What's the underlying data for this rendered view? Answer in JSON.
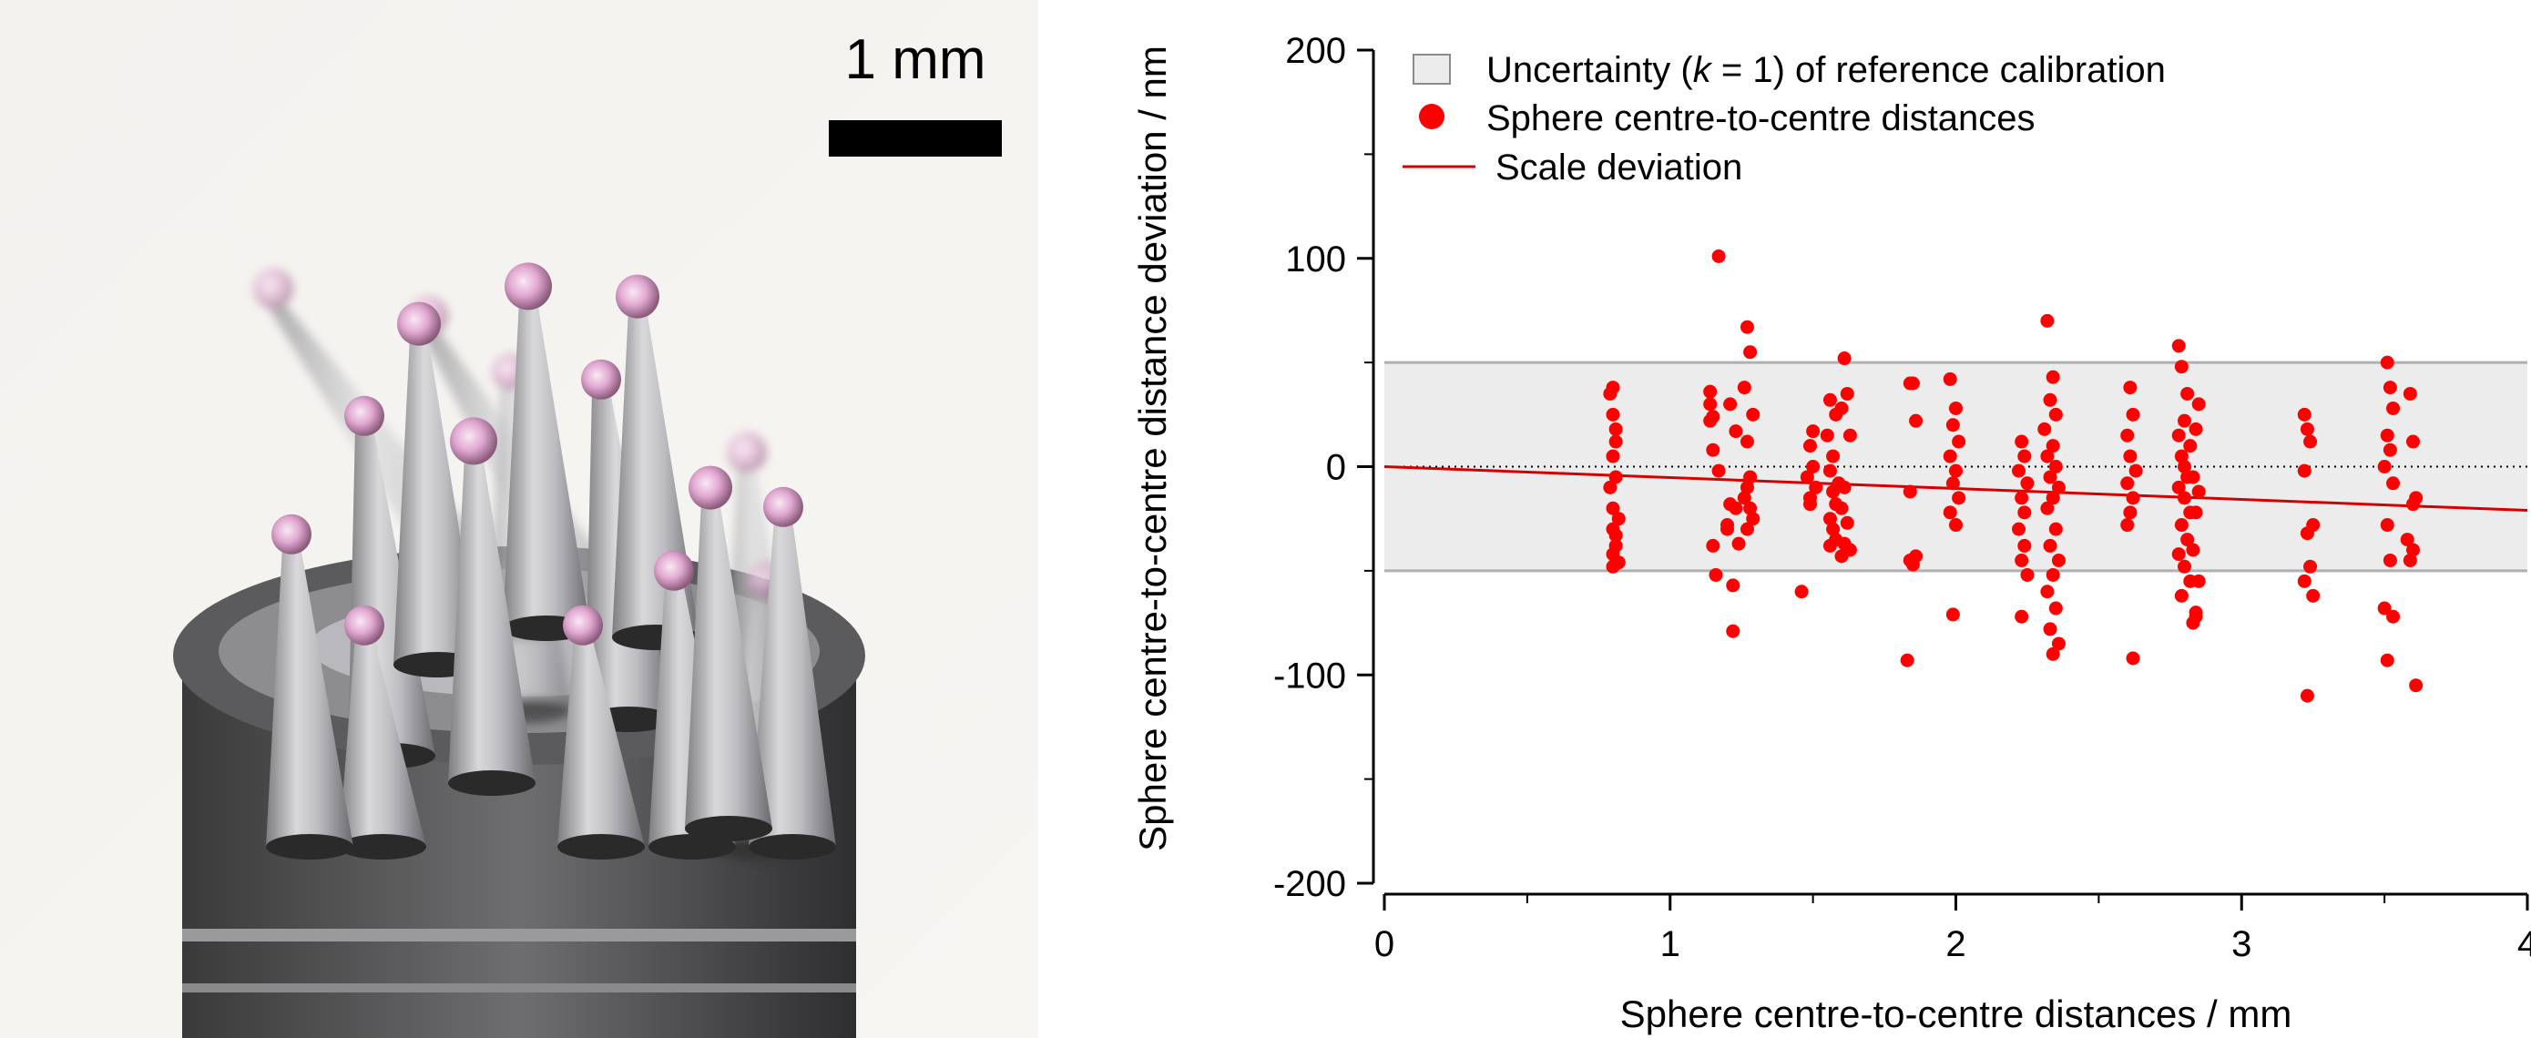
{
  "photo": {
    "scale_bar_label": "1 mm"
  },
  "chart_data": {
    "type": "scatter",
    "title": "",
    "xlabel": "Sphere centre-to-centre distances / mm",
    "ylabel": "Sphere centre-to-centre distance deviation / nm",
    "xlim": [
      0,
      4
    ],
    "ylim": [
      -200,
      200
    ],
    "x_ticks": [
      "0",
      "1",
      "2",
      "3",
      "4"
    ],
    "y_ticks": [
      "-200",
      "-100",
      "0",
      "100",
      "200"
    ],
    "grid": false,
    "legend_position": "top-left",
    "uncertainty_band": {
      "name": "Uncertainty (k = 1) of reference calibration",
      "lower": -50,
      "upper": 50,
      "color": "#ececec"
    },
    "scale_deviation": {
      "name": "Scale deviation",
      "x": [
        0,
        4
      ],
      "y": [
        0,
        -21
      ],
      "color": "#d40000"
    },
    "points": {
      "name": "Sphere centre-to-centre distances",
      "color": "#ff0000",
      "x": [
        0.79,
        0.8,
        0.8,
        0.81,
        0.81,
        0.8,
        0.81,
        0.79,
        0.8,
        0.82,
        0.8,
        0.81,
        0.81,
        0.8,
        0.82,
        0.8,
        1.14,
        1.14,
        1.17,
        1.15,
        1.16,
        1.17,
        1.14,
        1.15,
        1.15,
        1.21,
        1.23,
        1.2,
        1.24,
        1.22,
        1.22,
        1.21,
        1.23,
        1.2,
        1.27,
        1.28,
        1.26,
        1.29,
        1.27,
        1.28,
        1.27,
        1.26,
        1.28,
        1.29,
        1.27,
        1.46,
        1.5,
        1.49,
        1.5,
        1.48,
        1.51,
        1.49,
        1.49,
        1.56,
        1.58,
        1.55,
        1.57,
        1.56,
        1.59,
        1.57,
        1.58,
        1.56,
        1.57,
        1.58,
        1.56,
        1.61,
        1.62,
        1.6,
        1.63,
        1.61,
        1.6,
        1.62,
        1.61,
        1.63,
        1.6,
        1.84,
        1.86,
        1.85,
        1.84,
        1.86,
        1.84,
        1.85,
        1.83,
        1.98,
        2.0,
        1.99,
        2.01,
        1.98,
        2.0,
        1.99,
        2.01,
        1.98,
        2.0,
        1.99,
        2.23,
        2.24,
        2.22,
        2.25,
        2.23,
        2.24,
        2.22,
        2.24,
        2.23,
        2.25,
        2.23,
        2.32,
        2.34,
        2.33,
        2.35,
        2.31,
        2.34,
        2.32,
        2.35,
        2.33,
        2.36,
        2.34,
        2.32,
        2.35,
        2.33,
        2.36,
        2.34,
        2.32,
        2.35,
        2.33,
        2.36,
        2.34,
        2.61,
        2.62,
        2.6,
        2.61,
        2.63,
        2.6,
        2.62,
        2.61,
        2.6,
        2.62,
        2.78,
        2.79,
        2.81,
        2.8,
        2.78,
        2.82,
        2.79,
        2.8,
        2.81,
        2.78,
        2.8,
        2.82,
        2.79,
        2.81,
        2.78,
        2.8,
        2.82,
        2.79,
        2.84,
        2.83,
        2.85,
        2.84,
        2.83,
        2.85,
        2.84,
        2.83,
        2.85,
        2.84,
        3.22,
        3.23,
        3.24,
        3.22,
        3.25,
        3.23,
        3.24,
        3.22,
        3.25,
        3.23,
        3.51,
        3.52,
        3.53,
        3.51,
        3.52,
        3.5,
        3.53,
        3.51,
        3.52,
        3.5,
        3.53,
        3.51,
        3.59,
        3.6,
        3.61,
        3.58,
        3.6,
        3.59,
        3.61,
        3.6
      ],
      "y": [
        35,
        38,
        25,
        18,
        12,
        5,
        -5,
        -10,
        -20,
        -25,
        -30,
        -33,
        -38,
        -42,
        -46,
        -48,
        30,
        22,
        -2,
        -38,
        -52,
        101,
        36,
        24,
        8,
        -18,
        -20,
        -30,
        -37,
        -57,
        -79,
        30,
        17,
        -28,
        67,
        55,
        38,
        25,
        12,
        -5,
        -10,
        -15,
        -20,
        -25,
        -30,
        -60,
        17,
        10,
        0,
        -5,
        -10,
        -15,
        -18,
        32,
        25,
        15,
        5,
        -2,
        -8,
        -12,
        -18,
        -25,
        -30,
        -35,
        -38,
        52,
        35,
        28,
        15,
        -10,
        -20,
        -27,
        -37,
        -40,
        -43,
        40,
        22,
        40,
        -12,
        -43,
        -45,
        -47,
        -93,
        42,
        28,
        20,
        12,
        5,
        -2,
        -8,
        -15,
        -22,
        -28,
        -71,
        12,
        5,
        -2,
        -8,
        -15,
        -22,
        -30,
        -38,
        -45,
        -52,
        -72,
        70,
        43,
        32,
        25,
        18,
        10,
        5,
        0,
        -5,
        -10,
        -15,
        -20,
        -30,
        -38,
        -45,
        -52,
        -60,
        -68,
        -78,
        -85,
        -90,
        38,
        25,
        15,
        5,
        -2,
        -8,
        -15,
        -22,
        -28,
        -92,
        58,
        48,
        35,
        22,
        15,
        10,
        5,
        0,
        -5,
        -10,
        -15,
        -22,
        -28,
        -35,
        -42,
        -48,
        -55,
        -62,
        -70,
        -75,
        30,
        18,
        -5,
        -12,
        -22,
        -40,
        -55,
        -72,
        25,
        18,
        12,
        -2,
        -28,
        -32,
        -48,
        -55,
        -62,
        -110,
        50,
        38,
        28,
        15,
        8,
        0,
        -8,
        -28,
        -45,
        -68,
        -72,
        -93,
        35,
        12,
        -15,
        -35,
        -40,
        -45,
        -105,
        -18
      ]
    }
  }
}
